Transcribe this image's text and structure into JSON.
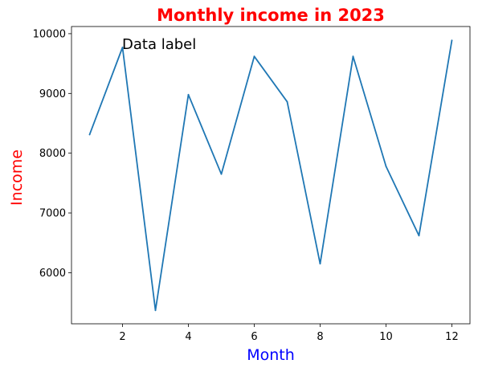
{
  "chart_data": {
    "type": "line",
    "title": "Monthly income in 2023",
    "xlabel": "Month",
    "ylabel": "Income",
    "x": [
      1,
      2,
      3,
      4,
      5,
      6,
      7,
      8,
      9,
      10,
      11,
      12
    ],
    "series": [
      {
        "values": [
          8310,
          9770,
          5370,
          8980,
          7650,
          9620,
          8860,
          6150,
          9620,
          7780,
          6620,
          9890
        ]
      }
    ],
    "xlim": [
      0.45,
      12.55
    ],
    "ylim": [
      5145,
      10120
    ],
    "xticks": [
      2,
      4,
      6,
      8,
      10,
      12
    ],
    "yticks": [
      6000,
      7000,
      8000,
      9000,
      10000
    ],
    "annotation": {
      "text": "Data label",
      "x": 2,
      "y": 9770
    },
    "grid": false,
    "colors": {
      "title": "#ff0000",
      "xlabel": "#0000ff",
      "ylabel": "#ff0000",
      "line": "#1f77b4",
      "axes": "#000000"
    }
  }
}
